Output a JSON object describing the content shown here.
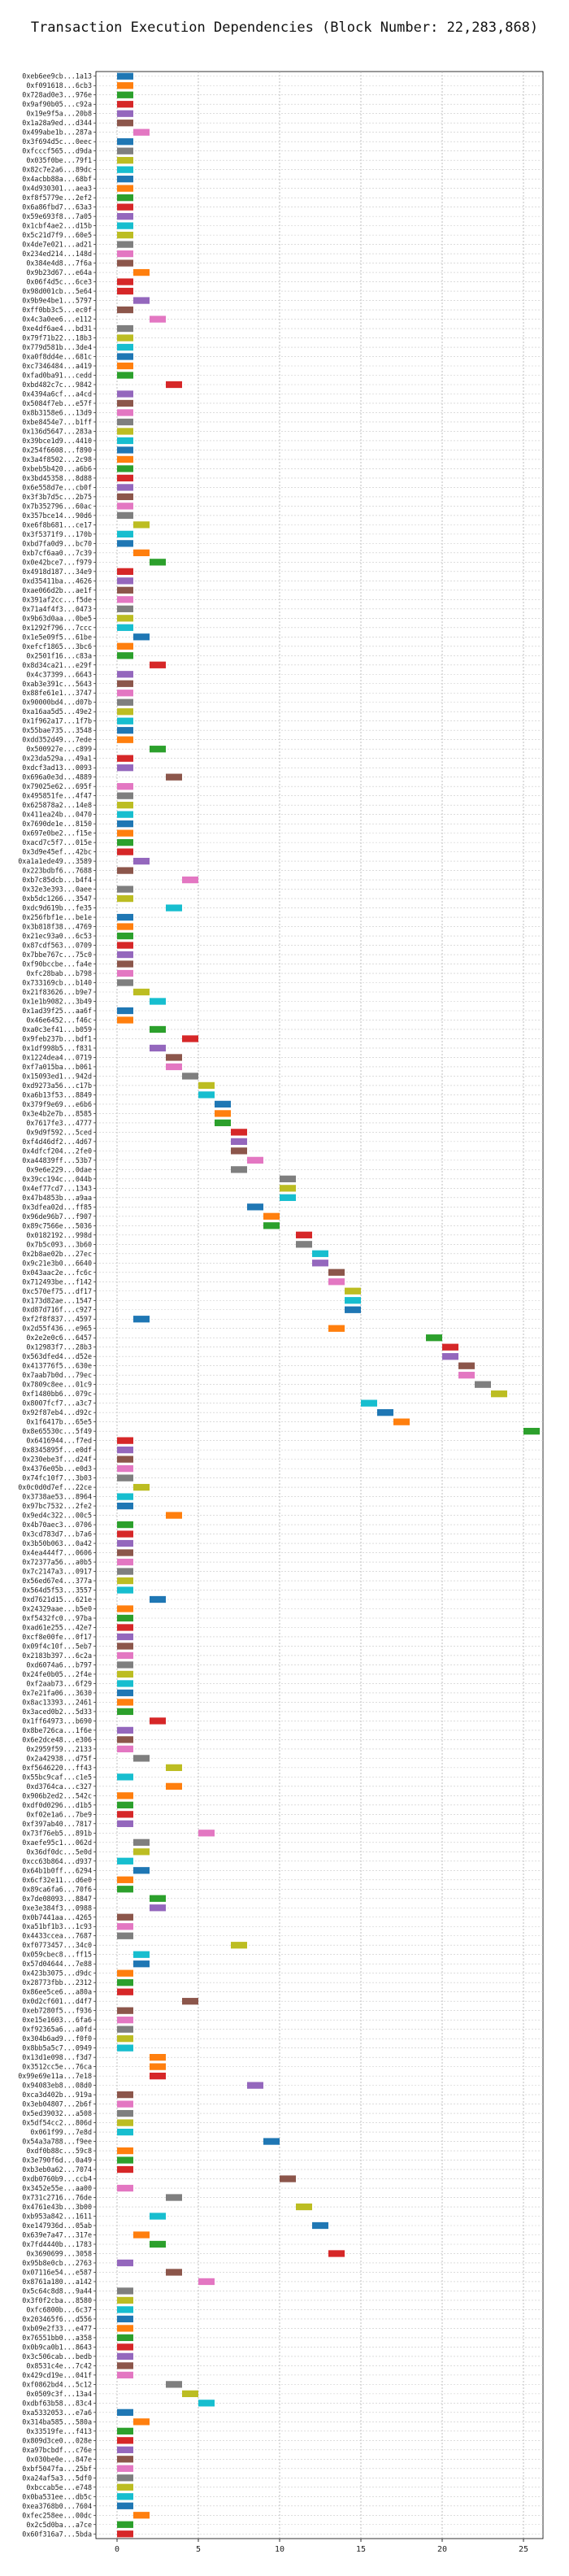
{
  "chart_data": {
    "type": "bar",
    "title": "Transaction Execution Dependencies (Block Number: 22,283,868)",
    "xlabel": "",
    "ylabel": "",
    "xlim": [
      -1.3,
      26.2
    ],
    "xticks": [
      0,
      5,
      10,
      15,
      20,
      25
    ],
    "grid": true,
    "colors": [
      "#1f77b4",
      "#ff7f0e",
      "#2ca02c",
      "#d62728",
      "#9467bd",
      "#8c564b",
      "#e377c2",
      "#7f7f7f",
      "#bcbd22",
      "#17becf"
    ],
    "transactions": [
      "0xeb6ee9cb...1a13",
      "0xf091618...6cb3",
      "0x728ad0e3...976e",
      "0x9af90b05...c92a",
      "0x19e9f5a...20b8",
      "0x1a28a9ed...d344",
      "0x499abe1b...287a",
      "0x3f694d5c...0eec",
      "0xfcccf565...d9da",
      "0x035f0be...79f1",
      "0x82c7e2a6...89dc",
      "0x4acbb88a...68bf",
      "0x4d930301...aea3",
      "0xf8f5779e...2ef2",
      "0x6a86fbd7...63a3",
      "0x59e693f8...7a05",
      "0x1cbf4ae2...d15b",
      "0x5c21d7f9...60e5",
      "0x4de7e021...ad21",
      "0x234ed214...148d",
      "0x384e4d8...7f6a",
      "0x9b23d67...e64a",
      "0x06f4d5c...6ce3",
      "0x98d001cb...5e64",
      "0x9b9e4be1...5797",
      "0xff0bb3c5...ec0f",
      "0x4c3a0ee6...e112",
      "0xe4df6ae4...bd31",
      "0x79f71b22...18b3",
      "0x779d581b...3de4",
      "0xa0f8dd4e...681c",
      "0xc7346484...a419",
      "0xfad0ba91...cedd",
      "0xbd482c7c...9842",
      "0x4394a6cf...a4cd",
      "0x5084f7eb...e57f",
      "0x8b3158e6...13d9",
      "0xbe8454e7...b1ff",
      "0x136d5647...283a",
      "0x39bce1d9...4410",
      "0x254f6608...f890",
      "0x3a4f8502...2c98",
      "0xbeb5b420...a6b6",
      "0x3bd45358...8d88",
      "0x6e558d7e...cb0f",
      "0x3f3b7d5c...2b75",
      "0x7b352796...60ac",
      "0x357bce14...90d6",
      "0xe6f8b681...ce17",
      "0x3f5371f9...170b",
      "0xbd7fa0d9...bc70",
      "0xb7cf6aa0...7c39",
      "0x0e42bce7...f979",
      "0x4918d187...34e9",
      "0xd35411ba...4626",
      "0xae066d2b...ae1f",
      "0x391af2cc...f5de",
      "0x71a4f4f3...0473",
      "0x9b63d0aa...0be5",
      "0x1292f796...7ccc",
      "0x1e5e09f5...61be",
      "0xefcf1865...3bc6",
      "0x2501f16...c83a",
      "0x8d34ca21...e29f",
      "0x4c37399...6643",
      "0xab3e391c...5643",
      "0x88fe61e1...3747",
      "0x90000bd4...d07b",
      "0xa16aa5d5...49e2",
      "0x1f962a17...1f7b",
      "0x55bae735...3548",
      "0xdd352d49...7ede",
      "0x500927e...c899",
      "0x23da529a...49a1",
      "0xdcf3ad13...0093",
      "0x696a0e3d...4889",
      "0x79025e62...695f",
      "0x495851fe...4f47",
      "0x625878a2...14e8",
      "0x411ea24b...0470",
      "0x7690de1e...8150",
      "0x697e0be2...f15e",
      "0xacd7c5f7...015e",
      "0x3d9e45ef...42bc",
      "0xa1a1ede49...3589",
      "0x223bdbf6...7688",
      "0xb7c85dcb...b4f4",
      "0x32e3e393...0aee",
      "0xb5dc1266...3547",
      "0xdc9d619b...fe35",
      "0x256fbf1e...be1e",
      "0x3b818f38...4769",
      "0x21ec93a0...6c53",
      "0x87cdf563...0709",
      "0x7bbe767c...75c0",
      "0xf90bccbe...fa4e",
      "0xfc28bab...b798",
      "0x733169cb...b140",
      "0x21f83626...b9e7",
      "0x1e1b9082...3b49",
      "0x1ad39f25...aa6f",
      "0x46e6452...f46c",
      "0xa0c3ef41...b059",
      "0x9feb237b...bdf1",
      "0x1df998b5...f831",
      "0x1224dea4...0719",
      "0xf7a015ba...b061",
      "0x15093ed1...942d",
      "0xd9273a56...c17b",
      "0xa6b13f53...8849",
      "0x379f9e69...e6b6",
      "0x3e4b2e7b...8585",
      "0x7617fe3...4777",
      "0x9d9f592...5ced",
      "0xf4d46df2...4d67",
      "0x4dfcf204...2fe0",
      "0xa44839ff...53b7",
      "0x9e6e229...0dae",
      "0x39cc194c...044b",
      "0x4ef77cd7...1343",
      "0x47b4853b...a9aa",
      "0x3dfea02d...ff85",
      "0x96de96b7...f907",
      "0x89c7566e...5036",
      "0x0182192...998d",
      "0x7b5c093...3b60",
      "0x2b8ae02b...27ec",
      "0x9c21e3b0...6640",
      "0x043aac2e...fc6c",
      "0x712493be...f142",
      "0xc570ef75...df17",
      "0x173d82ae...1547",
      "0xd87d716f...c927",
      "0xf2f8f837...4597",
      "0x2d55f436...e965",
      "0x2e2e0c6...6457",
      "0x12983f7...28b3",
      "0x563dfed4...d52e",
      "0x413776f5...630e",
      "0x7aab7b0d...79ec",
      "0x7809c8ee...01c9",
      "0xf1480bb6...079c",
      "0x8007fcf7...a3c7",
      "0x92f87eb4...d92c",
      "0x1f6417b...65e5",
      "0x8e65530c...5f49",
      "0x6416944...f7ed",
      "0x8345895f...e0df",
      "0x230ebe3f...d24f",
      "0x4376e05b...e0d3",
      "0x74fc10f7...3b03",
      "0x0c0d0d7ef...22ce",
      "0x3738ae53...8964",
      "0x97bc7532...2fe2",
      "0x9ed4c322...00c5",
      "0x4b70aec3...0706",
      "0x3cd783d7...b7a6",
      "0x3b50b063...0a42",
      "0x4ea444f7...0606",
      "0x72377a56...a0b5",
      "0x7c2147a3...0917",
      "0x56ed67e4...377a",
      "0x564d5f53...3557",
      "0xd7621d15...621e",
      "0x24329aae...b5e0",
      "0xf5432fc0...97ba",
      "0xad61e255...42e7",
      "0xcf8e00fe...0f17",
      "0x09f4c10f...5eb7",
      "0x2183b397...6c2a",
      "0xd6074a6...b797",
      "0x24fe0b05...2f4e",
      "0xf2aab73...6f29",
      "0x7e21fa06...3630",
      "0x8ac13393...2461",
      "0x3aced0b2...5d33",
      "0x1ff64973...b690",
      "0x8be726ca...1f6e",
      "0x6e2dce48...e306",
      "0x2959f59...2133",
      "0x2a42938...d75f",
      "0xf5646220...ff43",
      "0x55bc9caf...c1e5",
      "0xd3764ca...c327",
      "0x906b2ed2...542c",
      "0xdf0d0296...d1b5",
      "0xf02e1a6...7be9",
      "0xf397ab40...7817",
      "0x73f76eb5...891b",
      "0xaefe95c1...062d",
      "0x36df0dc...5e0d",
      "0xcc63b864...d937",
      "0x64b1b0ff...6294",
      "0x6cf32e11...d6e0",
      "0x89ca6fa6...70f6",
      "0x7de08093...8847",
      "0xe3e384f3...0988",
      "0x0b7441aa...4265",
      "0xa51bf1b3...1c93",
      "0x4433ccea...7687",
      "0xf0773457...34c0",
      "0x059cbec8...ff15",
      "0x57d04644...7e88",
      "0x423b3075...d9dc",
      "0x28773fbb...2312",
      "0x86ee5ce6...a80a",
      "0x0d2cf601...d4f7",
      "0xeb7280f5...f936",
      "0xe15e1603...6fa6",
      "0xf92365a6...a0fd",
      "0x304b6ad9...f0f0",
      "0x8bb5a5c7...0949",
      "0x13d1e098...f3d7",
      "0x3512cc5e...76ca",
      "0x99e69e11a...7e18",
      "0x94083eb8...08d0",
      "0xca3d402b...919a",
      "0x3eb04807...2b6f",
      "0x5ed39032...a508",
      "0x5df54cc2...806d",
      "0x061f99...7e8d",
      "0x54a3a788...f9ee",
      "0xdf0b88c...59c8",
      "0x3e790f6d...0a49",
      "0xb3eb0a62...7074",
      "0xdb0760b9...ccb4",
      "0x3452e55e...aa00",
      "0x731c2716...76de",
      "0x4761e43b...3b00",
      "0xb953a842...1611",
      "0xe147936d...05ab",
      "0x639e7a47...317e",
      "0x7fd4440b...1783",
      "0x3690699...3058",
      "0x95b8e0cb...2763",
      "0x07116e54...e587",
      "0x8761a180...a142",
      "0x5c64c8d8...9a44",
      "0x3f0f2cba...8580",
      "0xfc6800b...6c37",
      "0x203465f6...d556",
      "0xb09e2f33...e477",
      "0x76551bb0...a358",
      "0x0b9ca0b1...8643",
      "0x3c506cab...bedb",
      "0x8531c4e...7c42",
      "0x429cd19e...041f",
      "0xf0862bd4...5c12",
      "0x0509c3f...13a4",
      "0xdbf63b58...83c4",
      "0xa5332053...e7a6",
      "0x314ba585...580a",
      "0x33519fe...f413",
      "0x809d3ce0...028e",
      "0xa97bcbdf...c76e",
      "0x030be0e...847e",
      "0xbf5047fa...25bf",
      "0xa24af5a3...5df0",
      "0xbccab5e...e748",
      "0x0ba531ee...db5c",
      "0xea3768b0...7604",
      "0xfec258ee...00dc",
      "0x2c5d0ba...a7ce",
      "0x60f316a7...5bda"
    ],
    "bars": [
      [
        0,
        0
      ],
      [
        0,
        1
      ],
      [
        0,
        2
      ],
      [
        0,
        3
      ],
      [
        0,
        4
      ],
      [
        0,
        5
      ],
      [
        1,
        6
      ],
      [
        0,
        0
      ],
      [
        0,
        7
      ],
      [
        0,
        8
      ],
      [
        0,
        9
      ],
      [
        0,
        0
      ],
      [
        0,
        1
      ],
      [
        0,
        2
      ],
      [
        0,
        3
      ],
      [
        0,
        4
      ],
      [
        0,
        9
      ],
      [
        0,
        8
      ],
      [
        0,
        7
      ],
      [
        0,
        6
      ],
      [
        0,
        5
      ],
      [
        1,
        1
      ],
      [
        0,
        3
      ],
      [
        0,
        3
      ],
      [
        1,
        4
      ],
      [
        0,
        5
      ],
      [
        2,
        6
      ],
      [
        0,
        7
      ],
      [
        0,
        8
      ],
      [
        0,
        9
      ],
      [
        0,
        0
      ],
      [
        0,
        1
      ],
      [
        0,
        2
      ],
      [
        3,
        3
      ],
      [
        0,
        4
      ],
      [
        0,
        5
      ],
      [
        0,
        6
      ],
      [
        0,
        7
      ],
      [
        0,
        8
      ],
      [
        0,
        9
      ],
      [
        0,
        0
      ],
      [
        0,
        1
      ],
      [
        0,
        2
      ],
      [
        0,
        3
      ],
      [
        0,
        4
      ],
      [
        0,
        5
      ],
      [
        0,
        6
      ],
      [
        0,
        7
      ],
      [
        1,
        8
      ],
      [
        0,
        9
      ],
      [
        0,
        0
      ],
      [
        1,
        1
      ],
      [
        2,
        2
      ],
      [
        0,
        3
      ],
      [
        0,
        4
      ],
      [
        0,
        5
      ],
      [
        0,
        6
      ],
      [
        0,
        7
      ],
      [
        0,
        8
      ],
      [
        0,
        9
      ],
      [
        1,
        0
      ],
      [
        0,
        1
      ],
      [
        0,
        2
      ],
      [
        2,
        3
      ],
      [
        0,
        4
      ],
      [
        0,
        5
      ],
      [
        0,
        6
      ],
      [
        0,
        7
      ],
      [
        0,
        8
      ],
      [
        0,
        9
      ],
      [
        0,
        0
      ],
      [
        0,
        1
      ],
      [
        2,
        2
      ],
      [
        0,
        3
      ],
      [
        0,
        4
      ],
      [
        3,
        5
      ],
      [
        0,
        6
      ],
      [
        0,
        7
      ],
      [
        0,
        8
      ],
      [
        0,
        9
      ],
      [
        0,
        0
      ],
      [
        0,
        1
      ],
      [
        0,
        2
      ],
      [
        0,
        3
      ],
      [
        1,
        4
      ],
      [
        0,
        5
      ],
      [
        4,
        6
      ],
      [
        0,
        7
      ],
      [
        0,
        8
      ],
      [
        3,
        9
      ],
      [
        0,
        0
      ],
      [
        0,
        1
      ],
      [
        0,
        2
      ],
      [
        0,
        3
      ],
      [
        0,
        4
      ],
      [
        0,
        5
      ],
      [
        0,
        6
      ],
      [
        0,
        7
      ],
      [
        1,
        8
      ],
      [
        2,
        9
      ],
      [
        0,
        0
      ],
      [
        0,
        1
      ],
      [
        2,
        2
      ],
      [
        4,
        3
      ],
      [
        2,
        4
      ],
      [
        3,
        5
      ],
      [
        3,
        6
      ],
      [
        4,
        7
      ],
      [
        5,
        8
      ],
      [
        5,
        9
      ],
      [
        6,
        0
      ],
      [
        6,
        1
      ],
      [
        6,
        2
      ],
      [
        7,
        3
      ],
      [
        7,
        4
      ],
      [
        7,
        5
      ],
      [
        8,
        6
      ],
      [
        7,
        7
      ],
      [
        10,
        7
      ],
      [
        10,
        8
      ],
      [
        10,
        9
      ],
      [
        8,
        0
      ],
      [
        9,
        1
      ],
      [
        9,
        2
      ],
      [
        11,
        3
      ],
      [
        11,
        7
      ],
      [
        12,
        9
      ],
      [
        12,
        4
      ],
      [
        13,
        5
      ],
      [
        13,
        6
      ],
      [
        14,
        8
      ],
      [
        14,
        9
      ],
      [
        14,
        0
      ],
      [
        1,
        0
      ],
      [
        13,
        1
      ],
      [
        19,
        2
      ],
      [
        20,
        3
      ],
      [
        20,
        4
      ],
      [
        21,
        5
      ],
      [
        21,
        6
      ],
      [
        22,
        7
      ],
      [
        23,
        8
      ],
      [
        15,
        9
      ],
      [
        16,
        0
      ],
      [
        17,
        1
      ],
      [
        25,
        2
      ],
      [
        0,
        3
      ],
      [
        0,
        4
      ],
      [
        0,
        5
      ],
      [
        0,
        6
      ],
      [
        0,
        7
      ],
      [
        1,
        8
      ],
      [
        0,
        9
      ],
      [
        0,
        0
      ],
      [
        3,
        1
      ],
      [
        0,
        2
      ],
      [
        0,
        3
      ],
      [
        0,
        4
      ],
      [
        0,
        5
      ],
      [
        0,
        6
      ],
      [
        0,
        7
      ],
      [
        0,
        8
      ],
      [
        0,
        9
      ],
      [
        2,
        0
      ],
      [
        0,
        1
      ],
      [
        0,
        2
      ],
      [
        0,
        3
      ],
      [
        0,
        4
      ],
      [
        0,
        5
      ],
      [
        0,
        6
      ],
      [
        0,
        7
      ],
      [
        0,
        8
      ],
      [
        0,
        9
      ],
      [
        0,
        0
      ],
      [
        0,
        1
      ],
      [
        0,
        2
      ],
      [
        2,
        3
      ],
      [
        0,
        4
      ],
      [
        0,
        5
      ],
      [
        0,
        6
      ],
      [
        1,
        7
      ],
      [
        3,
        8
      ],
      [
        0,
        9
      ],
      [
        3,
        1
      ],
      [
        0,
        1
      ],
      [
        0,
        2
      ],
      [
        0,
        3
      ],
      [
        0,
        4
      ],
      [
        5,
        6
      ],
      [
        1,
        7
      ],
      [
        1,
        8
      ],
      [
        0,
        9
      ],
      [
        1,
        0
      ],
      [
        0,
        1
      ],
      [
        0,
        2
      ],
      [
        2,
        2
      ],
      [
        2,
        4
      ],
      [
        0,
        5
      ],
      [
        0,
        6
      ],
      [
        0,
        7
      ],
      [
        7,
        8
      ],
      [
        1,
        9
      ],
      [
        1,
        0
      ],
      [
        0,
        1
      ],
      [
        0,
        2
      ],
      [
        0,
        3
      ],
      [
        4,
        5
      ],
      [
        0,
        5
      ],
      [
        0,
        6
      ],
      [
        0,
        7
      ],
      [
        0,
        8
      ],
      [
        0,
        9
      ],
      [
        2,
        1
      ],
      [
        2,
        1
      ],
      [
        2,
        3
      ],
      [
        8,
        4
      ],
      [
        0,
        5
      ],
      [
        0,
        6
      ],
      [
        0,
        7
      ],
      [
        0,
        8
      ],
      [
        0,
        9
      ],
      [
        9,
        0
      ],
      [
        0,
        1
      ],
      [
        0,
        2
      ],
      [
        0,
        3
      ],
      [
        10,
        5
      ],
      [
        0,
        6
      ],
      [
        3,
        7
      ],
      [
        11,
        8
      ],
      [
        2,
        9
      ],
      [
        12,
        0
      ],
      [
        1,
        1
      ],
      [
        2,
        2
      ],
      [
        13,
        3
      ],
      [
        0,
        4
      ],
      [
        3,
        5
      ],
      [
        5,
        6
      ],
      [
        0,
        7
      ],
      [
        0,
        8
      ],
      [
        0,
        9
      ],
      [
        0,
        0
      ],
      [
        0,
        1
      ],
      [
        0,
        2
      ],
      [
        0,
        3
      ],
      [
        0,
        4
      ],
      [
        0,
        5
      ],
      [
        0,
        6
      ],
      [
        3,
        7
      ],
      [
        4,
        8
      ],
      [
        5,
        9
      ],
      [
        0,
        0
      ],
      [
        1,
        1
      ],
      [
        0,
        2
      ],
      [
        0,
        3
      ],
      [
        0,
        4
      ],
      [
        0,
        5
      ],
      [
        0,
        6
      ],
      [
        0,
        7
      ],
      [
        0,
        8
      ],
      [
        0,
        9
      ],
      [
        0,
        0
      ],
      [
        1,
        1
      ],
      [
        0,
        2
      ],
      [
        0,
        3
      ]
    ]
  }
}
